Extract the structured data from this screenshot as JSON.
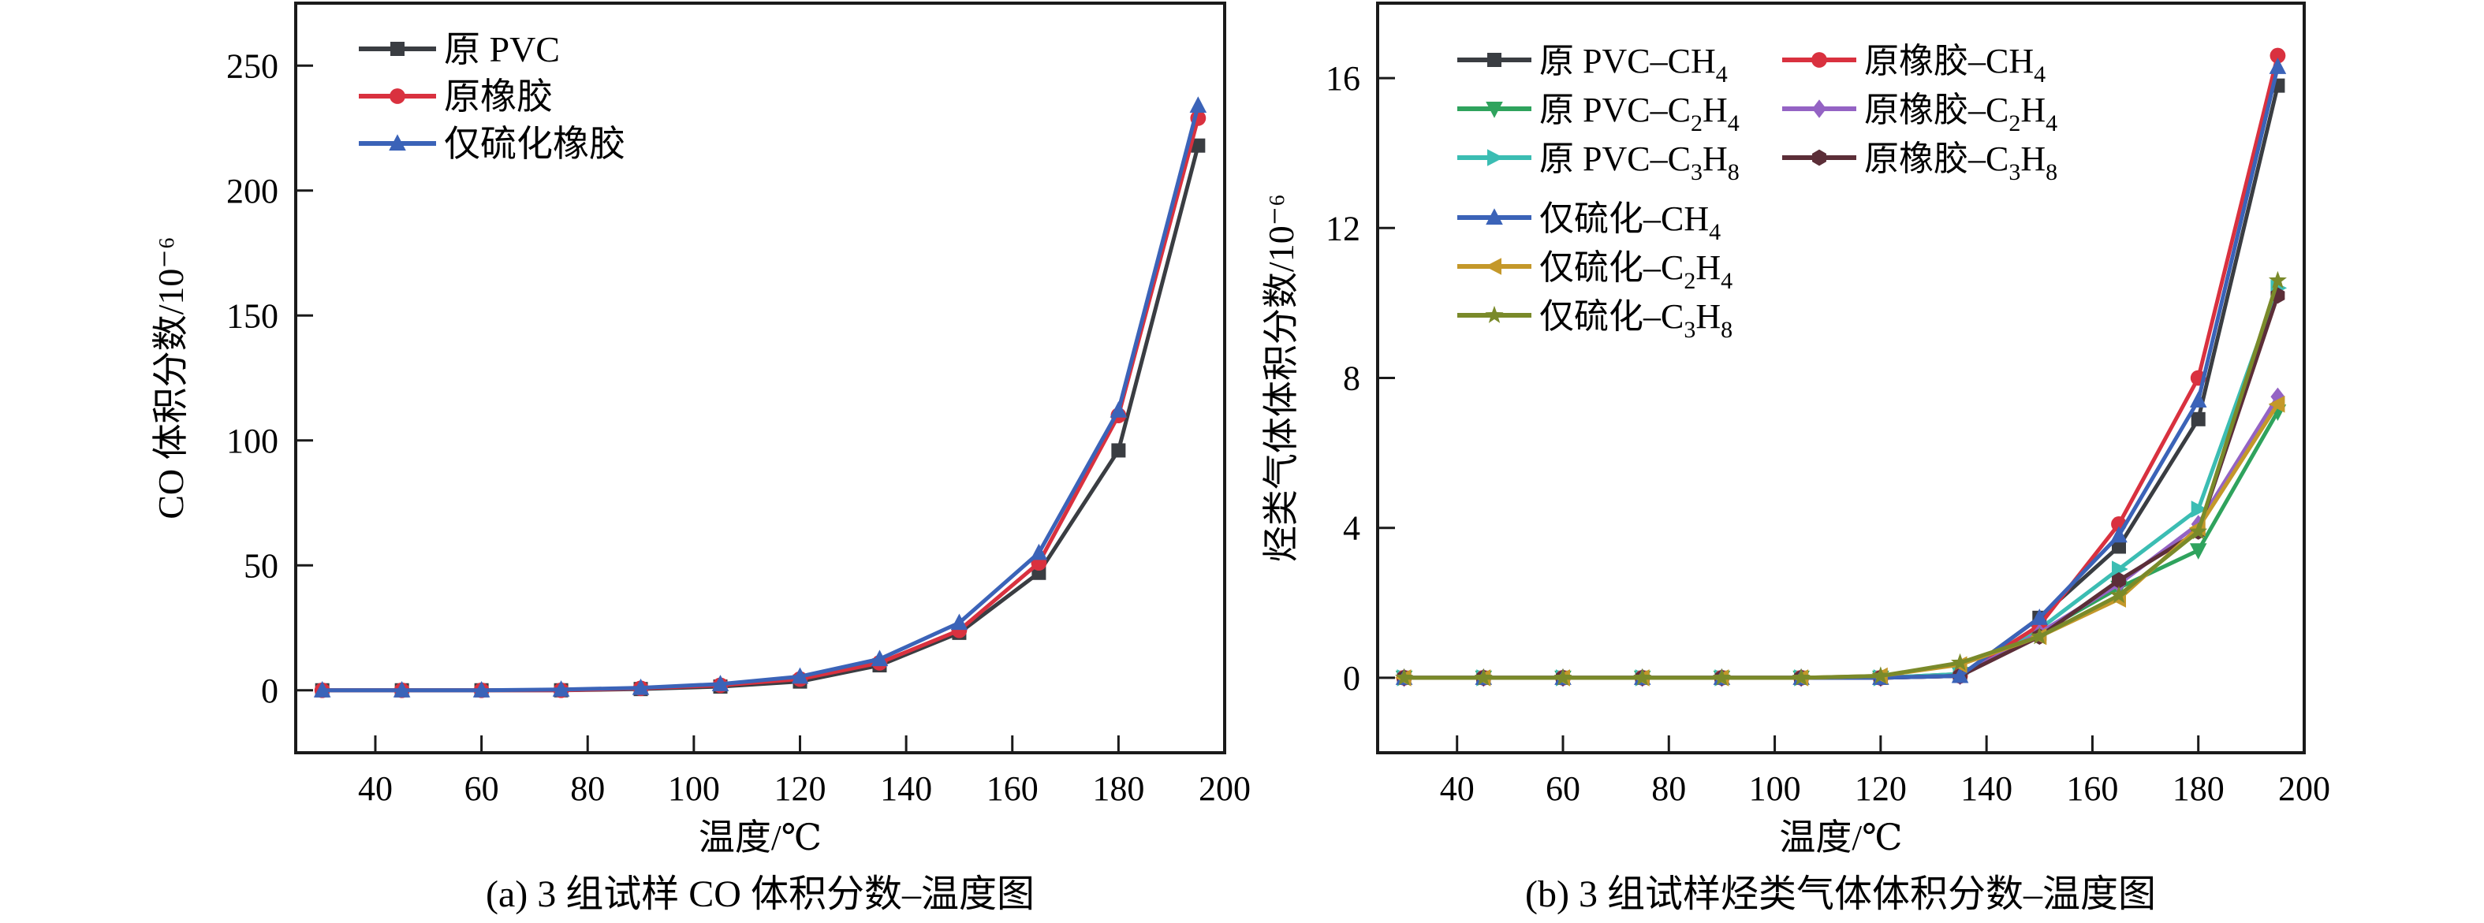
{
  "chart_data": [
    {
      "id": "a",
      "type": "line",
      "title": "",
      "caption": "(a) 3 组试样 CO 体积分数–温度图",
      "xlabel": "温度/℃",
      "ylabel": "CO 体积分数/10⁻⁶",
      "xlim": [
        25,
        200
      ],
      "ylim": [
        -25,
        275
      ],
      "xticks": [
        40,
        60,
        80,
        100,
        120,
        140,
        160,
        180,
        200
      ],
      "yticks": [
        0,
        50,
        100,
        150,
        200,
        250
      ],
      "grid": false,
      "legend_position": "top-left",
      "x": [
        30,
        45,
        60,
        75,
        90,
        105,
        120,
        135,
        150,
        165,
        180,
        195
      ],
      "series": [
        {
          "name": "原 PVC",
          "color": "#3a3d42",
          "marker": "square",
          "values": [
            0,
            0,
            0,
            0,
            0.5,
            1.5,
            3.5,
            10,
            23,
            47,
            96,
            218
          ]
        },
        {
          "name": "原橡胶",
          "color": "#d9313f",
          "marker": "circle",
          "values": [
            0,
            0,
            0,
            0,
            0.8,
            2,
            4.5,
            11,
            24,
            51,
            110,
            229
          ]
        },
        {
          "name": "仅硫化橡胶",
          "color": "#3b63b8",
          "marker": "triangle-up",
          "values": [
            0,
            0,
            0,
            0.3,
            1,
            2.5,
            5.5,
            12.5,
            27,
            55,
            112,
            234
          ]
        }
      ]
    },
    {
      "id": "b",
      "type": "line",
      "title": "",
      "caption": "(b) 3 组试样烃类气体体积分数–温度图",
      "xlabel": "温度/℃",
      "ylabel": "烃类气体体积分数/10⁻⁶",
      "xlim": [
        25,
        200
      ],
      "ylim": [
        -2,
        18
      ],
      "xticks": [
        40,
        60,
        80,
        100,
        120,
        140,
        160,
        180,
        200
      ],
      "yticks": [
        0,
        4,
        8,
        12,
        16
      ],
      "grid": false,
      "legend_position": "top-left",
      "x": [
        30,
        45,
        60,
        75,
        90,
        105,
        120,
        135,
        150,
        165,
        180,
        195
      ],
      "series": [
        {
          "name": "原 PVC–CH",
          "sub": [
            "",
            "4"
          ],
          "label_parts": [
            "原 PVC–CH",
            "4",
            ""
          ],
          "color": "#3a3d42",
          "marker": "square",
          "values": [
            0,
            0,
            0,
            0,
            0,
            0,
            0,
            0.05,
            1.6,
            3.5,
            6.9,
            15.8
          ]
        },
        {
          "name": "原 PVC–C2H4",
          "label_parts": [
            "原 PVC–C",
            "2",
            "H",
            "4"
          ],
          "color": "#2fa35d",
          "marker": "triangle-down",
          "values": [
            0,
            0,
            0,
            0,
            0,
            0,
            0,
            0.1,
            1.2,
            2.4,
            3.4,
            7.1
          ]
        },
        {
          "name": "原 PVC–C3H8",
          "label_parts": [
            "原 PVC–C",
            "3",
            "H",
            "8"
          ],
          "color": "#3bbdb3",
          "marker": "triangle-right",
          "values": [
            0,
            0,
            0,
            0,
            0,
            0,
            0,
            0.1,
            1.3,
            2.9,
            4.5,
            10.4
          ]
        },
        {
          "name": "原橡胶–CH4",
          "label_parts": [
            "原橡胶–CH",
            "4"
          ],
          "color": "#d9313f",
          "marker": "circle",
          "values": [
            0,
            0,
            0,
            0,
            0,
            0,
            0,
            0.05,
            1.4,
            4.1,
            8.0,
            16.6
          ]
        },
        {
          "name": "原橡胶–C2H4",
          "label_parts": [
            "原橡胶–C",
            "2",
            "H",
            "4"
          ],
          "color": "#9463c4",
          "marker": "diamond",
          "values": [
            0,
            0,
            0,
            0,
            0,
            0,
            0,
            0.05,
            1.2,
            2.5,
            4.1,
            7.5
          ]
        },
        {
          "name": "原橡胶–C3H8",
          "label_parts": [
            "原橡胶–C",
            "3",
            "H",
            "8"
          ],
          "color": "#5c2e38",
          "marker": "hexagon",
          "values": [
            0,
            0,
            0,
            0,
            0,
            0,
            0,
            0.05,
            1.1,
            2.6,
            3.9,
            10.2
          ]
        },
        {
          "name": "仅硫化–CH4",
          "label_parts": [
            "仅硫化–CH",
            "4"
          ],
          "color": "#3b63b8",
          "marker": "triangle-up",
          "values": [
            0,
            0,
            0,
            0,
            0,
            0,
            0,
            0.05,
            1.6,
            3.8,
            7.4,
            16.3
          ]
        },
        {
          "name": "仅硫化–C2H4",
          "label_parts": [
            "仅硫化–C",
            "2",
            "H",
            "4"
          ],
          "color": "#c4982a",
          "marker": "triangle-left",
          "values": [
            0,
            0,
            0,
            0,
            0,
            0,
            0.05,
            0.35,
            1.1,
            2.1,
            4.0,
            7.3
          ]
        },
        {
          "name": "仅硫化–C3H8",
          "label_parts": [
            "仅硫化–C",
            "3",
            "H",
            "8"
          ],
          "color": "#7a8a2a",
          "marker": "star",
          "values": [
            0,
            0,
            0,
            0,
            0,
            0,
            0.05,
            0.4,
            1.1,
            2.2,
            3.9,
            10.6
          ]
        }
      ]
    }
  ]
}
